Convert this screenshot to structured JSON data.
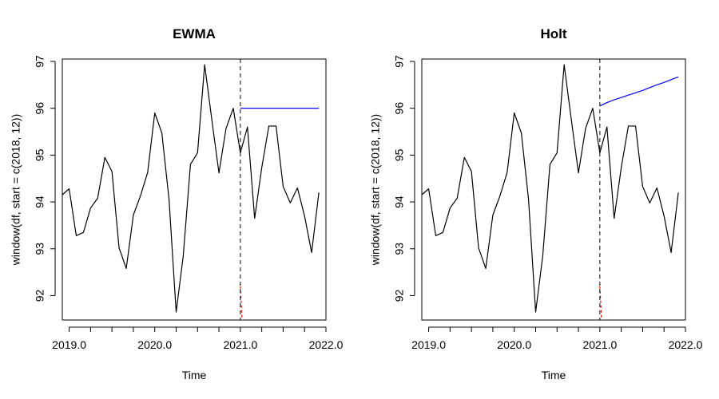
{
  "chart_data": [
    {
      "type": "line",
      "title": "EWMA",
      "xlabel": "Time",
      "ylabel": "window(df, start = c(2018, 12))",
      "xlim": [
        2018.92,
        2022.0
      ],
      "ylim": [
        91.48,
        97.05
      ],
      "x_ticks": [
        2019.0,
        2020.0,
        2021.0,
        2022.0
      ],
      "x_tick_labels": [
        "2019.0",
        "2020.0",
        "2021.0",
        "2022.0"
      ],
      "y_ticks": [
        92,
        93,
        94,
        95,
        96,
        97
      ],
      "y_tick_labels": [
        "92",
        "93",
        "94",
        "95",
        "96",
        "97"
      ],
      "grid": false,
      "vline": 2021.0,
      "series": [
        {
          "color": "#000000",
          "dash": "",
          "x": [
            2018.917,
            2019.0,
            2019.083,
            2019.167,
            2019.25,
            2019.333,
            2019.417,
            2019.5,
            2019.583,
            2019.667,
            2019.75,
            2019.833,
            2019.917,
            2020.0,
            2020.083,
            2020.167,
            2020.25,
            2020.333,
            2020.417,
            2020.5,
            2020.583,
            2020.667,
            2020.75,
            2020.833,
            2020.917,
            2021.0,
            2021.083,
            2021.167,
            2021.25,
            2021.333,
            2021.417,
            2021.5,
            2021.583,
            2021.667,
            2021.75,
            2021.833,
            2021.917
          ],
          "y": [
            94.15,
            94.28,
            93.28,
            93.35,
            93.87,
            94.08,
            94.95,
            94.65,
            93.02,
            92.58,
            93.72,
            94.13,
            94.63,
            95.9,
            95.47,
            94.05,
            91.65,
            92.85,
            94.8,
            95.05,
            96.93,
            95.75,
            94.62,
            95.57,
            96.0,
            95.05,
            95.6,
            93.65,
            94.73,
            95.62,
            95.62,
            94.33,
            93.98,
            94.3,
            93.7,
            92.92,
            94.2
          ]
        },
        {
          "color": "#0000ff",
          "dash": "",
          "x": [
            2021.0,
            2021.917
          ],
          "y": [
            96.0,
            96.0
          ]
        },
        {
          "color": "#ff0000",
          "dash": "3,3",
          "x": [
            2021.0,
            2021.02
          ],
          "y": [
            92.2,
            91.48
          ]
        }
      ]
    },
    {
      "type": "line",
      "title": "Holt",
      "xlabel": "Time",
      "ylabel": "window(df, start = c(2018, 12))",
      "xlim": [
        2018.92,
        2022.0
      ],
      "ylim": [
        91.48,
        97.05
      ],
      "x_ticks": [
        2019.0,
        2020.0,
        2021.0,
        2022.0
      ],
      "x_tick_labels": [
        "2019.0",
        "2020.0",
        "2021.0",
        "2022.0"
      ],
      "y_ticks": [
        92,
        93,
        94,
        95,
        96,
        97
      ],
      "y_tick_labels": [
        "92",
        "93",
        "94",
        "95",
        "96",
        "97"
      ],
      "grid": false,
      "vline": 2021.0,
      "series": [
        {
          "color": "#000000",
          "dash": "",
          "x": [
            2018.917,
            2019.0,
            2019.083,
            2019.167,
            2019.25,
            2019.333,
            2019.417,
            2019.5,
            2019.583,
            2019.667,
            2019.75,
            2019.833,
            2019.917,
            2020.0,
            2020.083,
            2020.167,
            2020.25,
            2020.333,
            2020.417,
            2020.5,
            2020.583,
            2020.667,
            2020.75,
            2020.833,
            2020.917,
            2021.0,
            2021.083,
            2021.167,
            2021.25,
            2021.333,
            2021.417,
            2021.5,
            2021.583,
            2021.667,
            2021.75,
            2021.833,
            2021.917
          ],
          "y": [
            94.15,
            94.28,
            93.28,
            93.35,
            93.87,
            94.08,
            94.95,
            94.65,
            93.02,
            92.58,
            93.72,
            94.13,
            94.63,
            95.9,
            95.47,
            94.05,
            91.65,
            92.85,
            94.8,
            95.05,
            96.93,
            95.75,
            94.62,
            95.57,
            96.0,
            95.05,
            95.6,
            93.65,
            94.73,
            95.62,
            95.62,
            94.33,
            93.98,
            94.3,
            93.7,
            92.92,
            94.2
          ]
        },
        {
          "color": "#0000ff",
          "dash": "",
          "x": [
            2021.0,
            2021.083,
            2021.167,
            2021.25,
            2021.333,
            2021.417,
            2021.5,
            2021.583,
            2021.667,
            2021.75,
            2021.833,
            2021.917
          ],
          "y": [
            96.05,
            96.12,
            96.18,
            96.23,
            96.28,
            96.33,
            96.38,
            96.44,
            96.5,
            96.55,
            96.61,
            96.67
          ]
        },
        {
          "color": "#ff0000",
          "dash": "3,3",
          "x": [
            2021.0,
            2021.02
          ],
          "y": [
            92.2,
            91.48
          ]
        }
      ]
    }
  ]
}
